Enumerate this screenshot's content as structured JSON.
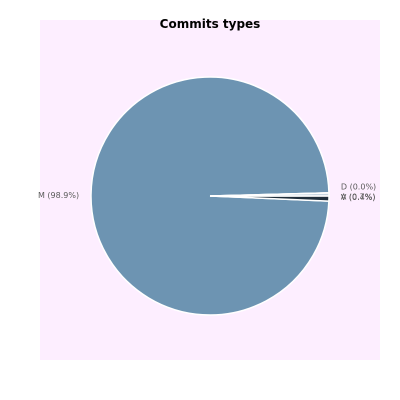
{
  "chart_data": {
    "type": "pie",
    "title": "Commits types",
    "slices": [
      {
        "label": "M",
        "display": "M (98.9%)",
        "percent": 98.9,
        "color": "#6d94b2"
      },
      {
        "label": "A",
        "display": "A (0.7%)",
        "percent": 0.7,
        "color": "#1f2e3b"
      },
      {
        "label": "V",
        "display": "V (0.4%)",
        "percent": 0.4,
        "color": "#c8d6e1"
      },
      {
        "label": "D",
        "display": "D (0.0%)",
        "percent": 0.0,
        "color": "#2a3b49"
      }
    ],
    "background_color": "#fdeeff",
    "legend": "none"
  }
}
